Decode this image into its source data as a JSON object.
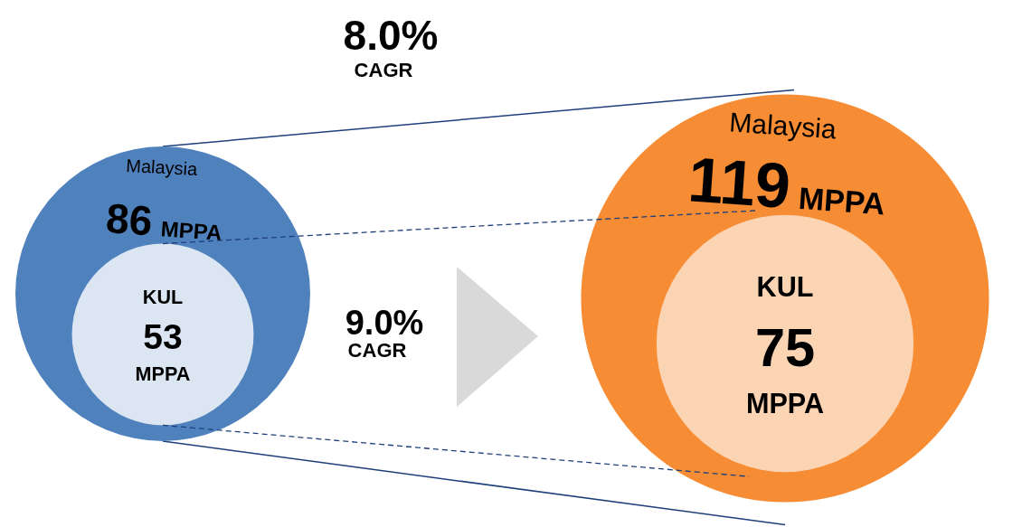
{
  "chart_data": {
    "type": "other",
    "categories": [
      "Malaysia",
      "KUL"
    ],
    "series": [
      {
        "colors": [
          "#4f81bd",
          "#dce6f2"
        ],
        "values": [
          86,
          53
        ],
        "value_labels": [
          "86 MPPA",
          "53 MPPA"
        ]
      },
      {
        "colors": [
          "#f68c33",
          "#fbd4b4"
        ],
        "values": [
          119,
          75
        ],
        "value_labels": [
          "119 MPPA",
          "75 MPPA"
        ]
      }
    ],
    "annotations": [
      "8.0%\nCAGR",
      "9.0%\nCAGR"
    ]
  }
}
